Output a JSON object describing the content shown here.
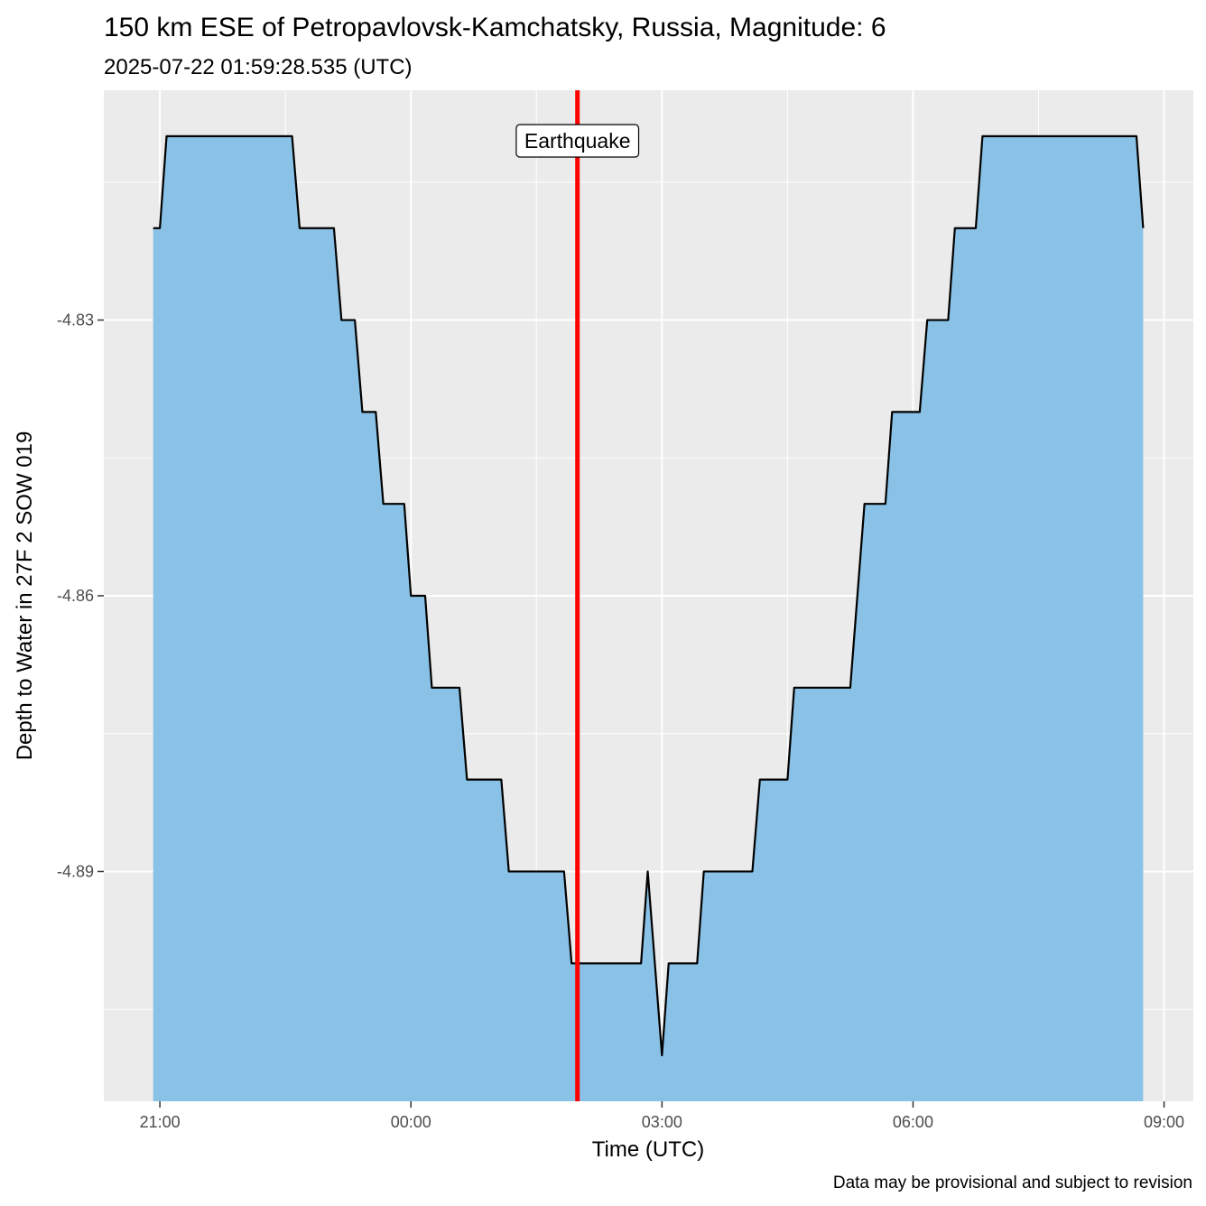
{
  "chart_data": {
    "type": "area",
    "title": "150 km ESE of Petropavlovsk-Kamchatsky, Russia, Magnitude: 6",
    "subtitle": "2025-07-22 01:59:28.535 (UTC)",
    "xlabel": "Time (UTC)",
    "ylabel": "Depth to Water in 27F 2 SOW 019",
    "caption": "Data may be provisional and subject to revision",
    "annotation": "Earthquake",
    "x_unit": "hours (UTC), 21:00 on 2025-07-21 = -3",
    "x_ticks": [
      {
        "value": -3,
        "label": "21:00"
      },
      {
        "value": 0,
        "label": "00:00"
      },
      {
        "value": 3,
        "label": "03:00"
      },
      {
        "value": 6,
        "label": "06:00"
      },
      {
        "value": 9,
        "label": "09:00"
      }
    ],
    "y_ticks": [
      {
        "value": -4.83,
        "label": "-4.83"
      },
      {
        "value": -4.86,
        "label": "-4.86"
      },
      {
        "value": -4.89,
        "label": "-4.89"
      }
    ],
    "xlim": [
      -3.67,
      9.35
    ],
    "ylim": [
      -4.915,
      -4.805
    ],
    "event_x": 1.99,
    "grid": true,
    "fill_color": "#87c1e6",
    "line_color": "#000000",
    "event_color": "#ff0000",
    "panel_color": "#ebebeb",
    "points": [
      [
        -3.08,
        -4.82
      ],
      [
        -3.0,
        -4.82
      ],
      [
        -2.92,
        -4.81
      ],
      [
        -1.42,
        -4.81
      ],
      [
        -1.33,
        -4.82
      ],
      [
        -0.92,
        -4.82
      ],
      [
        -0.83,
        -4.83
      ],
      [
        -0.67,
        -4.83
      ],
      [
        -0.58,
        -4.84
      ],
      [
        -0.42,
        -4.84
      ],
      [
        -0.33,
        -4.85
      ],
      [
        -0.08,
        -4.85
      ],
      [
        0.0,
        -4.86
      ],
      [
        0.17,
        -4.86
      ],
      [
        0.25,
        -4.87
      ],
      [
        0.58,
        -4.87
      ],
      [
        0.67,
        -4.88
      ],
      [
        1.08,
        -4.88
      ],
      [
        1.17,
        -4.89
      ],
      [
        1.83,
        -4.89
      ],
      [
        1.92,
        -4.9
      ],
      [
        2.75,
        -4.9
      ],
      [
        2.83,
        -4.89
      ],
      [
        3.0,
        -4.91
      ],
      [
        3.08,
        -4.9
      ],
      [
        3.42,
        -4.9
      ],
      [
        3.5,
        -4.89
      ],
      [
        4.08,
        -4.89
      ],
      [
        4.17,
        -4.88
      ],
      [
        4.5,
        -4.88
      ],
      [
        4.58,
        -4.87
      ],
      [
        5.25,
        -4.87
      ],
      [
        5.42,
        -4.85
      ],
      [
        5.67,
        -4.85
      ],
      [
        5.75,
        -4.84
      ],
      [
        6.08,
        -4.84
      ],
      [
        6.17,
        -4.83
      ],
      [
        6.42,
        -4.83
      ],
      [
        6.5,
        -4.82
      ],
      [
        6.75,
        -4.82
      ],
      [
        6.83,
        -4.81
      ],
      [
        8.67,
        -4.81
      ],
      [
        8.75,
        -4.82
      ]
    ]
  }
}
